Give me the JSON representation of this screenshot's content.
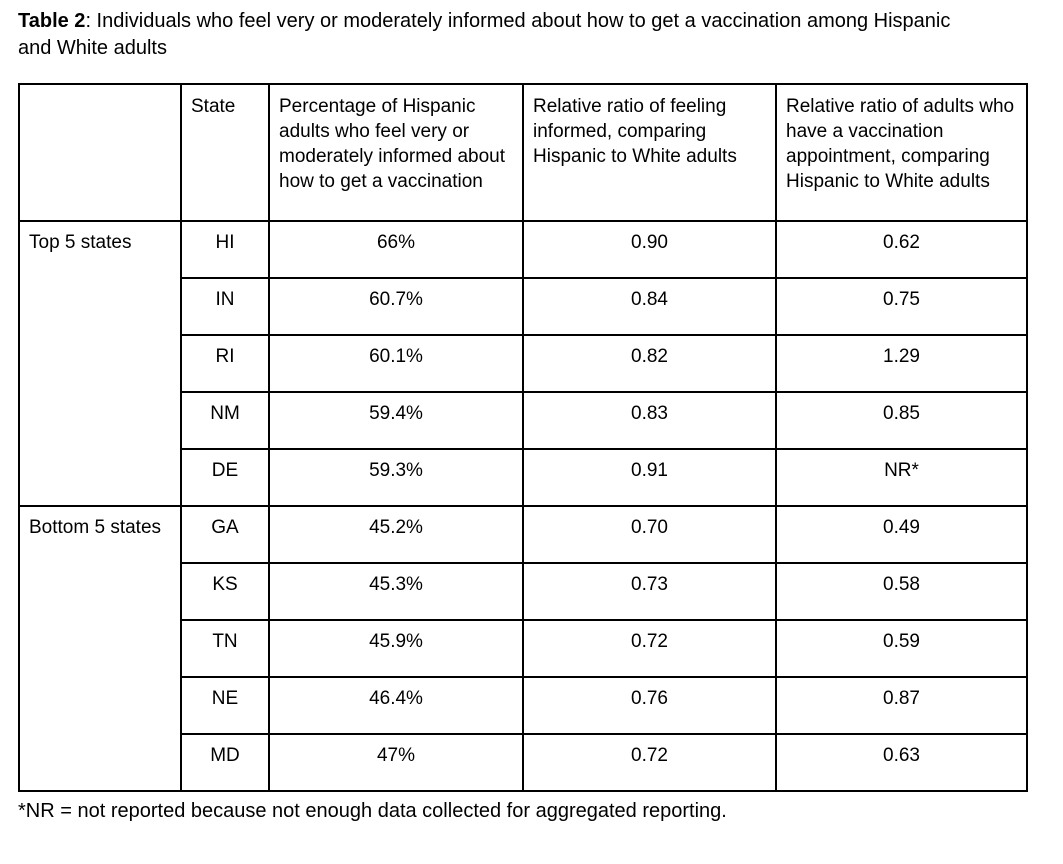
{
  "title": {
    "label": "Table 2",
    "text": ": Individuals who feel very or moderately informed about how to get a vaccination among Hispanic and White adults"
  },
  "table": {
    "headers": {
      "corner": "",
      "state": "State",
      "pct": "Percentage of Hispanic adults who feel very or moderately informed about how to get a vaccination",
      "ratio_informed": "Relative ratio of feeling informed, comparing Hispanic to White adults",
      "ratio_appointment": "Relative ratio of adults who have a vaccination appointment, comparing Hispanic to White adults"
    },
    "groups": [
      {
        "label": "Top 5 states",
        "rows": [
          {
            "state": "HI",
            "pct": "66%",
            "ratio_informed": "0.90",
            "ratio_appointment": "0.62"
          },
          {
            "state": "IN",
            "pct": "60.7%",
            "ratio_informed": "0.84",
            "ratio_appointment": "0.75"
          },
          {
            "state": "RI",
            "pct": "60.1%",
            "ratio_informed": "0.82",
            "ratio_appointment": "1.29"
          },
          {
            "state": "NM",
            "pct": "59.4%",
            "ratio_informed": "0.83",
            "ratio_appointment": "0.85"
          },
          {
            "state": "DE",
            "pct": "59.3%",
            "ratio_informed": "0.91",
            "ratio_appointment": "NR*"
          }
        ]
      },
      {
        "label": "Bottom 5 states",
        "rows": [
          {
            "state": "GA",
            "pct": "45.2%",
            "ratio_informed": "0.70",
            "ratio_appointment": "0.49"
          },
          {
            "state": "KS",
            "pct": "45.3%",
            "ratio_informed": "0.73",
            "ratio_appointment": "0.58"
          },
          {
            "state": "TN",
            "pct": "45.9%",
            "ratio_informed": "0.72",
            "ratio_appointment": "0.59"
          },
          {
            "state": "NE",
            "pct": "46.4%",
            "ratio_informed": "0.76",
            "ratio_appointment": "0.87"
          },
          {
            "state": "MD",
            "pct": "47%",
            "ratio_informed": "0.72",
            "ratio_appointment": "0.63"
          }
        ]
      }
    ]
  },
  "footnote": "*NR = not reported because not enough data collected for aggregated reporting.",
  "colors": {
    "text": "#000000",
    "border": "#000000",
    "background": "#ffffff"
  }
}
